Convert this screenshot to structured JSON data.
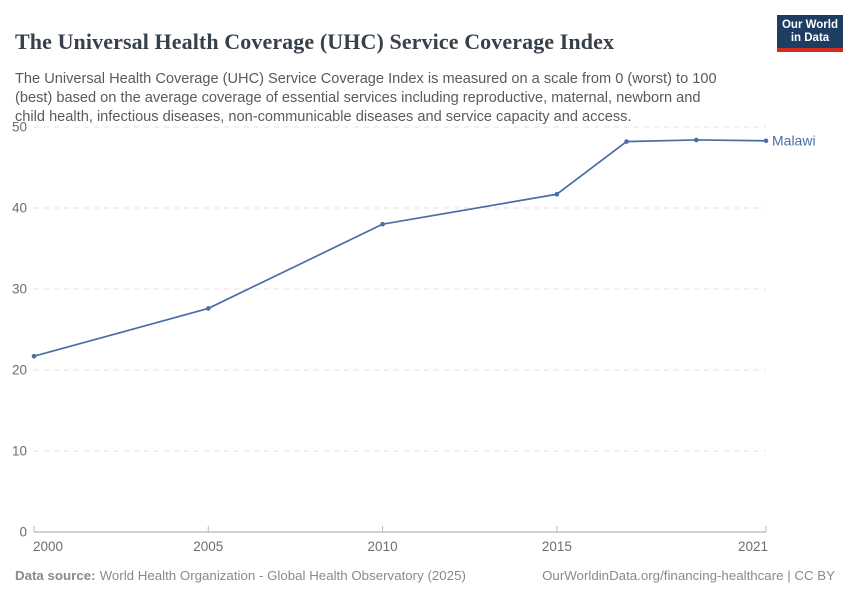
{
  "header": {
    "title": "The Universal Health Coverage (UHC) Service Coverage Index",
    "subtitle": "The Universal Health Coverage (UHC) Service Coverage Index is measured on a scale from 0 (worst) to 100 (best) based on the average coverage of essential services including reproductive, maternal, newborn and child health, infectious diseases, non-communicable diseases and service capacity and access.",
    "logo": {
      "line1": "Our World",
      "line2": "in Data",
      "bg_color": "#1d3d63",
      "bar_color": "#d42b21"
    }
  },
  "chart_data": {
    "type": "line",
    "title": "The Universal Health Coverage (UHC) Service Coverage Index",
    "series": [
      {
        "name": "Malawi",
        "color": "#4a6da8",
        "x": [
          2000,
          2005,
          2010,
          2015,
          2017,
          2019,
          2021
        ],
        "values": [
          21.7,
          27.6,
          38.0,
          41.7,
          48.2,
          48.4,
          48.3
        ]
      }
    ],
    "xlim": [
      2000,
      2021
    ],
    "ylim": [
      0,
      50
    ],
    "yticks": [
      0,
      10,
      20,
      30,
      40,
      50
    ],
    "xticks": [
      {
        "year": 2000,
        "label": "2000"
      },
      {
        "year": 2005,
        "label": "2005"
      },
      {
        "year": 2010,
        "label": "2010"
      },
      {
        "year": 2015,
        "label": "2015"
      },
      {
        "year": 2021,
        "label": "2021"
      }
    ],
    "grid": "horizontal-dashed",
    "legend": "label-at-line-end",
    "colors": {
      "grid": "#e2e2e2",
      "axis": "#a3a3a3",
      "tick": "#bbbbbb",
      "tick_label": "#6e6e6e"
    }
  },
  "footer": {
    "data_source_label": "Data source:",
    "data_source": "World Health Organization - Global Health Observatory (2025)",
    "attribution": "OurWorldinData.org/financing-healthcare | CC BY"
  }
}
